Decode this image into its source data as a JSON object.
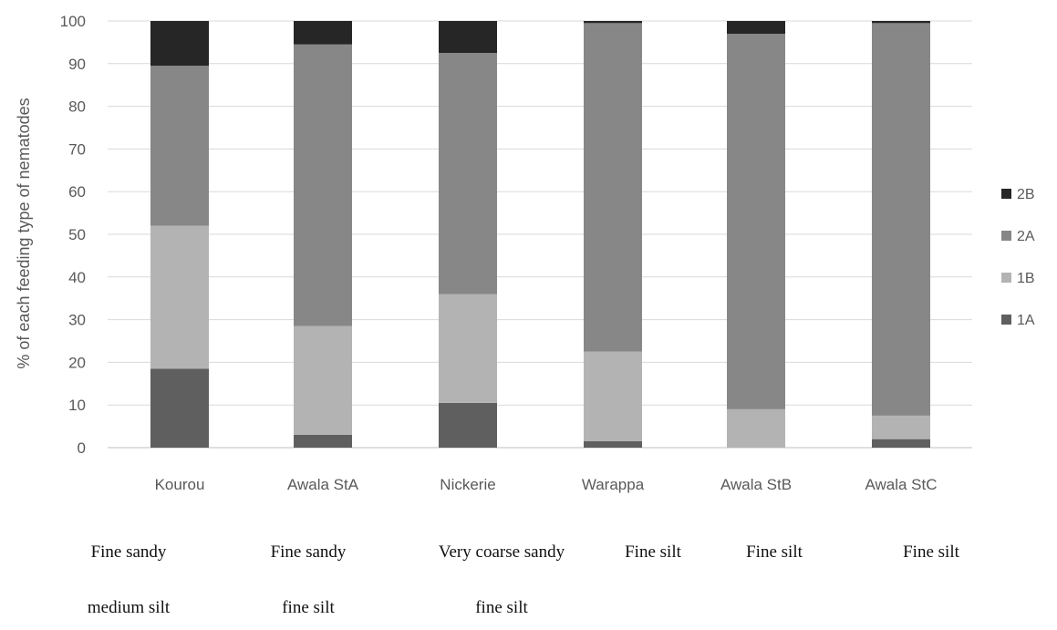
{
  "chart_data": {
    "type": "bar",
    "stacked": true,
    "ylabel": "% of  each feeding type of nematodes",
    "ylim": [
      0,
      100
    ],
    "yticks": [
      0,
      10,
      20,
      30,
      40,
      50,
      60,
      70,
      80,
      90,
      100
    ],
    "grid": true,
    "legend_position": "right",
    "categories": [
      "Kourou",
      "Awala StA",
      "Nickerie",
      "Warappa",
      "Awala StB",
      "Awala StC"
    ],
    "series": [
      {
        "name": "1A",
        "color": "#5f5f5f",
        "values": [
          18.5,
          3,
          10.5,
          1.5,
          0,
          2
        ]
      },
      {
        "name": "1B",
        "color": "#b3b3b3",
        "values": [
          33.5,
          25.5,
          25.5,
          21,
          9,
          5.5
        ]
      },
      {
        "name": "2A",
        "color": "#878787",
        "values": [
          37.5,
          66,
          56.5,
          77,
          88,
          92
        ]
      },
      {
        "name": "2B",
        "color": "#262626",
        "values": [
          10.5,
          5.5,
          7.5,
          0.5,
          3,
          0.5
        ]
      }
    ],
    "sediment_labels": [
      {
        "line1": "Fine sandy",
        "line2": "medium silt"
      },
      {
        "line1": "Fine sandy",
        "line2": "fine silt"
      },
      {
        "line1": "Very coarse sandy",
        "line2": "fine silt"
      },
      {
        "line1": "Fine silt",
        "line2": ""
      },
      {
        "line1": "Fine silt",
        "line2": ""
      },
      {
        "line1": "Fine silt",
        "line2": ""
      }
    ]
  }
}
